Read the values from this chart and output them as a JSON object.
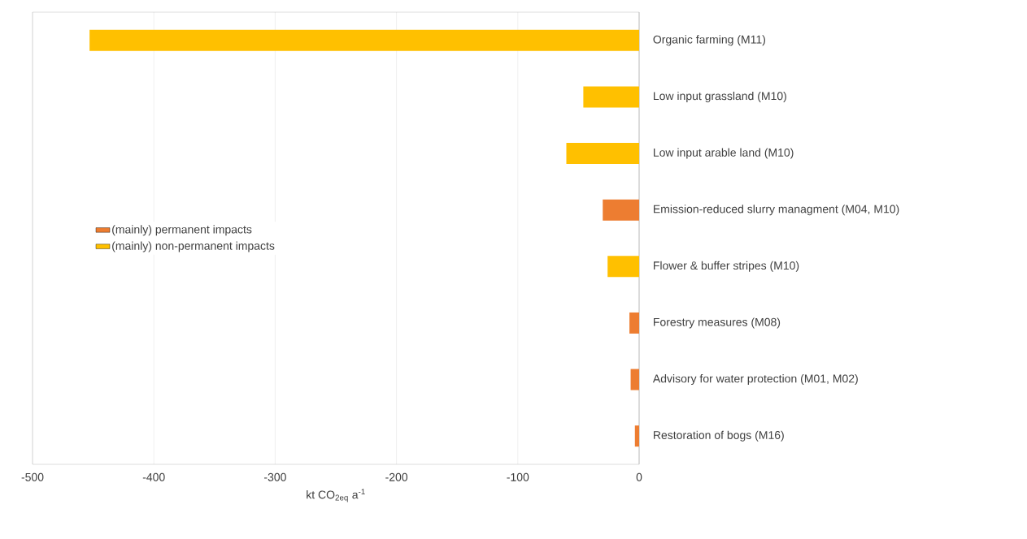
{
  "chart_data": {
    "type": "bar",
    "orientation": "horizontal",
    "categories": [
      "Organic farming (M11)",
      "Low input grassland (M10)",
      "Low input arable land (M10)",
      "Emission-reduced slurry managment (M04, M10)",
      "Flower & buffer stripes (M10)",
      "Forestry measures (M08)",
      "Advisory for water protection (M01, M02)",
      "Restoration of bogs (M16)"
    ],
    "series": [
      {
        "name": "(mainly) permanent impacts",
        "color": "#ed7d31",
        "values": [
          null,
          null,
          null,
          -30,
          null,
          -8,
          -7,
          -3.5
        ]
      },
      {
        "name": "(mainly) non-permanent impacts",
        "color": "#ffc000",
        "values": [
          -453,
          -46,
          -60,
          null,
          -26,
          null,
          null,
          null
        ]
      }
    ],
    "xlabel": "kt CO$_{2eq}$ a$^{-1}$",
    "xlim": [
      -500,
      0
    ],
    "xticks": [
      -500,
      -400,
      -300,
      -200,
      -100,
      0
    ],
    "grid": "x",
    "legend": "left"
  }
}
